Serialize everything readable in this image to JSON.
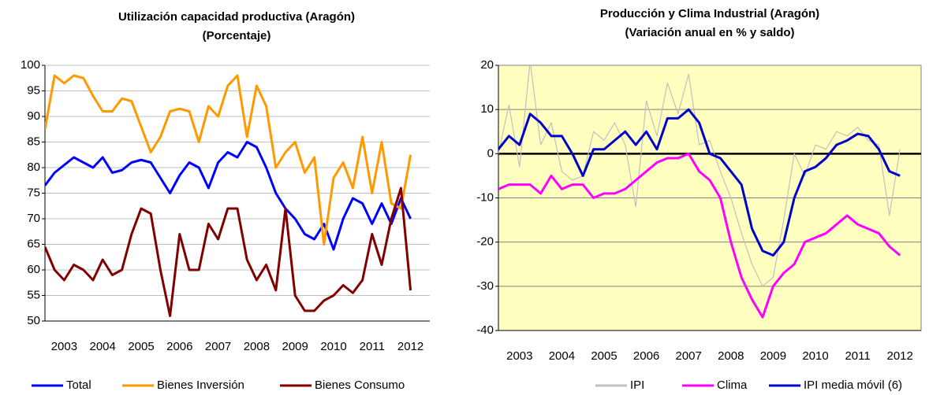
{
  "chart_data": [
    {
      "type": "line",
      "title": "Utilización capacidad productiva (Aragón)",
      "subtitle": "(Porcentaje)",
      "x": [
        2003,
        2003.25,
        2003.5,
        2003.75,
        2004,
        2004.25,
        2004.5,
        2004.75,
        2005,
        2005.25,
        2005.5,
        2005.75,
        2006,
        2006.25,
        2006.5,
        2006.75,
        2007,
        2007.25,
        2007.5,
        2007.75,
        2008,
        2008.25,
        2008.5,
        2008.75,
        2009,
        2009.25,
        2009.5,
        2009.75,
        2010,
        2010.25,
        2010.5,
        2010.75,
        2011,
        2011.25,
        2011.5,
        2011.75,
        2012,
        2012.25,
        2012.5
      ],
      "xlim": [
        2003,
        2013
      ],
      "xticks": [
        {
          "value": 2003.5,
          "label": "2003"
        },
        {
          "value": 2004.5,
          "label": "2004"
        },
        {
          "value": 2005.5,
          "label": "2005"
        },
        {
          "value": 2006.5,
          "label": "2006"
        },
        {
          "value": 2007.5,
          "label": "2007"
        },
        {
          "value": 2008.5,
          "label": "2008"
        },
        {
          "value": 2009.5,
          "label": "2009"
        },
        {
          "value": 2010.5,
          "label": "2010"
        },
        {
          "value": 2011.5,
          "label": "2011"
        },
        {
          "value": 2012.5,
          "label": "2012"
        }
      ],
      "ylim": [
        50,
        100
      ],
      "yticks": [
        50,
        55,
        60,
        65,
        70,
        75,
        80,
        85,
        90,
        95,
        100
      ],
      "grid": true,
      "background": "#ffffff",
      "legend": "bottom",
      "series": [
        {
          "name": "Total",
          "color": "#0000ff",
          "values": [
            76.5,
            79,
            80.5,
            82,
            81,
            80,
            82,
            79,
            79.5,
            81,
            81.5,
            81,
            78,
            75,
            78.5,
            81,
            80,
            76,
            81,
            83,
            82,
            85,
            84,
            80,
            75,
            72,
            70,
            67,
            66,
            69,
            64,
            70,
            74,
            73,
            69,
            73,
            69,
            74,
            70
          ]
        },
        {
          "name": "Bienes Inversión",
          "color": "#ff9900",
          "values": [
            87.5,
            98,
            96.5,
            98,
            97.5,
            94,
            91,
            91,
            93.5,
            93,
            88,
            83,
            86,
            91,
            91.5,
            91,
            85,
            92,
            90,
            96,
            98,
            86,
            96,
            92,
            80,
            83,
            85,
            79,
            82,
            65,
            78,
            81,
            76,
            86,
            75,
            85,
            73,
            72,
            82.5
          ]
        },
        {
          "name": "Bienes Consumo",
          "color": "#800000",
          "values": [
            64.5,
            60,
            58,
            61,
            60,
            58,
            62,
            59,
            60,
            67,
            72,
            71,
            60,
            51,
            67,
            60,
            60,
            69,
            66,
            72,
            72,
            62,
            58,
            61,
            56,
            72,
            55,
            52,
            52,
            54,
            55,
            57,
            55.5,
            58,
            67,
            61,
            70,
            76,
            56
          ]
        }
      ]
    },
    {
      "type": "line",
      "title": "Producción y Clima Industrial (Aragón)",
      "subtitle": "(Variación anual en % y saldo)",
      "x": [
        2003,
        2003.25,
        2003.5,
        2003.75,
        2004,
        2004.25,
        2004.5,
        2004.75,
        2005,
        2005.25,
        2005.5,
        2005.75,
        2006,
        2006.25,
        2006.5,
        2006.75,
        2007,
        2007.25,
        2007.5,
        2007.75,
        2008,
        2008.25,
        2008.5,
        2008.75,
        2009,
        2009.25,
        2009.5,
        2009.75,
        2010,
        2010.25,
        2010.5,
        2010.75,
        2011,
        2011.25,
        2011.5,
        2011.75,
        2012,
        2012.25,
        2012.5
      ],
      "xlim": [
        2003,
        2013
      ],
      "xticks": [
        {
          "value": 2003.5,
          "label": "2003"
        },
        {
          "value": 2004.5,
          "label": "2004"
        },
        {
          "value": 2005.5,
          "label": "2005"
        },
        {
          "value": 2006.5,
          "label": "2006"
        },
        {
          "value": 2007.5,
          "label": "2007"
        },
        {
          "value": 2008.5,
          "label": "2008"
        },
        {
          "value": 2009.5,
          "label": "2009"
        },
        {
          "value": 2010.5,
          "label": "2010"
        },
        {
          "value": 2011.5,
          "label": "2011"
        },
        {
          "value": 2012.5,
          "label": "2012"
        }
      ],
      "ylim": [
        -40,
        20
      ],
      "yticks": [
        -40,
        -30,
        -20,
        -10,
        0,
        10,
        20
      ],
      "grid": true,
      "zero_line": true,
      "background": "#ffffc0",
      "legend": "bottom",
      "series": [
        {
          "name": "IPI",
          "color": "#c0c0c0",
          "values": [
            0,
            11,
            -3,
            21,
            2,
            7,
            -4,
            -6,
            -5,
            5,
            3,
            7,
            2,
            -12,
            12,
            4,
            16,
            9,
            18,
            2,
            3,
            -4,
            -10,
            -18,
            -25,
            -30,
            -28,
            -15,
            0,
            -5,
            2,
            1,
            5,
            4,
            6,
            3,
            2,
            -14,
            1
          ]
        },
        {
          "name": "Clima",
          "color": "#ff00ff",
          "values": [
            -8,
            -7,
            -7,
            -7,
            -9,
            -5,
            -8,
            -7,
            -7,
            -10,
            -9,
            -9,
            -8,
            -6,
            -4,
            -2,
            -1,
            -1,
            0,
            -4,
            -6,
            -10,
            -20,
            -28,
            -33,
            -37,
            -30,
            -27,
            -25,
            -20,
            -19,
            -18,
            -16,
            -14,
            -16,
            -17,
            -18,
            -21,
            -23
          ]
        },
        {
          "name": "IPI media móvil (6)",
          "color": "#0000cc",
          "values": [
            1,
            4,
            2,
            9,
            7,
            4,
            4,
            0,
            -5,
            1,
            1,
            3,
            5,
            2,
            5,
            1,
            8,
            8,
            10,
            7,
            0,
            -1,
            -4,
            -7,
            -17,
            -22,
            -23,
            -20,
            -10,
            -4,
            -3,
            -1,
            2,
            3,
            4.5,
            4,
            1,
            -4,
            -5
          ]
        }
      ]
    }
  ]
}
